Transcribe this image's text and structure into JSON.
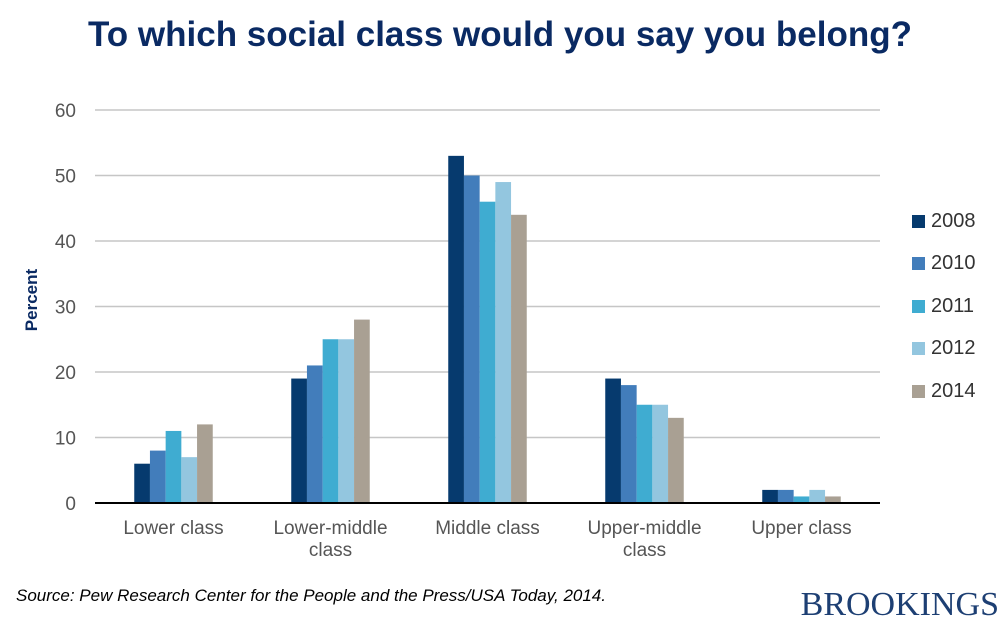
{
  "chart_data": {
    "type": "bar",
    "title": "To which social class would you say you belong?",
    "ylabel": "Percent",
    "xlabel": "",
    "ylim": [
      0,
      60
    ],
    "yticks": [
      0,
      10,
      20,
      30,
      40,
      50,
      60
    ],
    "grid": true,
    "legend_position": "right",
    "categories": [
      "Lower class",
      "Lower-middle class",
      "Middle class",
      "Upper-middle class",
      "Upper class"
    ],
    "series": [
      {
        "name": "2008",
        "color": "#063a6e",
        "values": [
          6,
          19,
          53,
          19,
          2
        ]
      },
      {
        "name": "2010",
        "color": "#427dbb",
        "values": [
          8,
          21,
          50,
          18,
          2
        ]
      },
      {
        "name": "2011",
        "color": "#3facd1",
        "values": [
          11,
          25,
          46,
          15,
          1
        ]
      },
      {
        "name": "2012",
        "color": "#93c6df",
        "values": [
          7,
          25,
          49,
          15,
          2
        ]
      },
      {
        "name": "2014",
        "color": "#a9a093",
        "values": [
          12,
          28,
          44,
          13,
          1
        ]
      }
    ]
  },
  "source": "Source: Pew Research Center for the People and the Press/USA Today, 2014.",
  "logo": "BROOKINGS"
}
